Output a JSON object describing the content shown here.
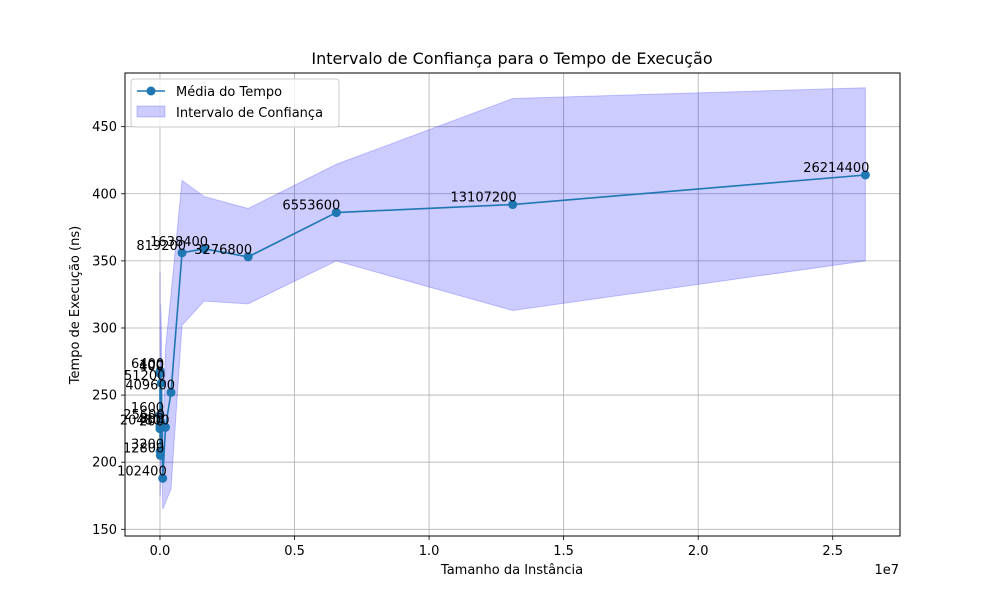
{
  "chart_data": {
    "type": "line",
    "title": "Intervalo de Confiança para o Tempo de Execução",
    "xlabel": "Tamanho da Instância",
    "ylabel": "Tempo de Execução (ns)",
    "x_offset_text": "1e7",
    "xlim": [
      -1300000,
      27500000
    ],
    "ylim": [
      145,
      490
    ],
    "xticks": [
      0,
      5000000,
      10000000,
      15000000,
      20000000,
      25000000
    ],
    "xtick_labels": [
      "0.0",
      "0.5",
      "1.0",
      "1.5",
      "2.0",
      "2.5"
    ],
    "yticks": [
      150,
      200,
      250,
      300,
      350,
      400,
      450
    ],
    "ytick_labels": [
      "150",
      "200",
      "250",
      "300",
      "350",
      "400",
      "450"
    ],
    "grid": true,
    "legend_position": "top-left",
    "colors": {
      "line": "#1f77b4",
      "band_fill": "#0000ff",
      "band_fill_opacity": 0.2,
      "grid": "#b0b0b0"
    },
    "series": [
      {
        "name": "Média do Tempo",
        "x": [
          100,
          200,
          400,
          800,
          1600,
          3200,
          6400,
          12800,
          25600,
          51200,
          102400,
          204800,
          409600,
          819200,
          1638400,
          3276800,
          6553600,
          13107200,
          26214400
        ],
        "y": [
          267,
          225,
          266,
          227,
          235,
          208,
          268,
          205,
          230,
          259,
          188,
          226,
          252,
          356,
          359,
          353,
          386,
          392,
          414
        ]
      },
      {
        "name": "Intervalo de Confiança",
        "x": [
          100,
          200,
          400,
          800,
          1600,
          3200,
          6400,
          12800,
          25600,
          51200,
          102400,
          204800,
          409600,
          819200,
          1638400,
          3276800,
          6553600,
          13107200,
          26214400
        ],
        "lower": [
          203,
          190,
          200,
          185,
          195,
          175,
          200,
          175,
          200,
          210,
          165,
          170,
          180,
          302,
          320,
          318,
          350,
          313,
          350
        ],
        "upper": [
          330,
          260,
          340,
          270,
          280,
          250,
          342,
          250,
          318,
          300,
          215,
          285,
          325,
          410,
          398,
          389,
          422,
          471,
          479
        ]
      }
    ],
    "point_labels": [
      "100",
      "200",
      "400",
      "800",
      "1600",
      "3200",
      "6400",
      "12800",
      "25600",
      "51200",
      "102400",
      "204800",
      "409600",
      "819200",
      "1638400",
      "3276800",
      "6553600",
      "13107200",
      "26214400"
    ]
  }
}
